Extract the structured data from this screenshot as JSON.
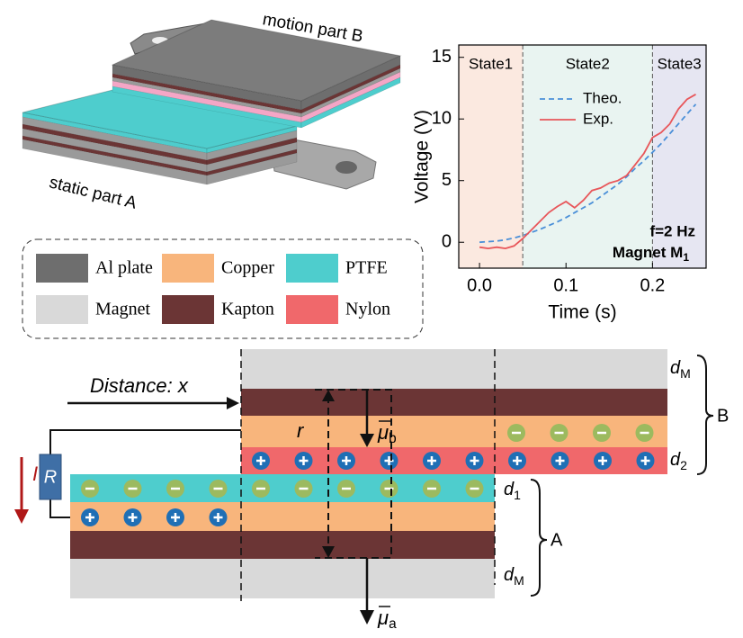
{
  "chart_data": {
    "type": "line",
    "x_label": "Time (s)",
    "y_label": "Voltage (V)",
    "x": [
      0,
      0.01,
      0.02,
      0.03,
      0.04,
      0.05,
      0.06,
      0.07,
      0.08,
      0.09,
      0.1,
      0.11,
      0.12,
      0.13,
      0.14,
      0.15,
      0.16,
      0.17,
      0.18,
      0.19,
      0.2,
      0.21,
      0.22,
      0.23,
      0.24,
      0.25
    ],
    "series": [
      {
        "name": "Theo.",
        "color": "#4a8fd8",
        "dashed": true,
        "values": [
          0,
          0.05,
          0.1,
          0.2,
          0.35,
          0.55,
          0.8,
          1.05,
          1.35,
          1.65,
          2.0,
          2.4,
          2.8,
          3.2,
          3.7,
          4.2,
          4.7,
          5.3,
          6.0,
          6.6,
          7.3,
          8.0,
          8.8,
          9.6,
          10.4,
          11.2
        ]
      },
      {
        "name": "Exp.",
        "color": "#e8565a",
        "dashed": false,
        "values": [
          -0.4,
          -0.5,
          -0.4,
          -0.5,
          -0.3,
          0.3,
          1.0,
          1.7,
          2.4,
          2.9,
          3.3,
          2.8,
          3.4,
          4.2,
          4.4,
          4.8,
          5.0,
          5.4,
          6.3,
          7.2,
          8.5,
          8.9,
          9.6,
          10.8,
          11.6,
          12.0
        ]
      }
    ],
    "regions": [
      {
        "name": "State1",
        "x0": -0.024,
        "x1": 0.05,
        "color": "#fbe9e0"
      },
      {
        "name": "State2",
        "x0": 0.05,
        "x1": 0.2,
        "color": "#e9f4f1"
      },
      {
        "name": "State3",
        "x0": 0.2,
        "x1": 0.262,
        "color": "#e6e6f2"
      }
    ],
    "xlim": [
      -0.024,
      0.262
    ],
    "ylim": [
      -2.1,
      16
    ],
    "xticks": [
      {
        "value": 0,
        "label": "0.0"
      },
      0.1,
      0.2
    ],
    "yticks": [
      0,
      5,
      10,
      15
    ],
    "annotation": {
      "line1": "f=2 Hz",
      "line2": "Magnet M",
      "line2_sub": "1"
    }
  },
  "illustration": {
    "motion_label": "motion part B",
    "static_label": "static part A"
  },
  "materials": [
    {
      "name": "Al plate",
      "color": "#6e6e6e"
    },
    {
      "name": "Copper",
      "color": "#f8b57c"
    },
    {
      "name": "PTFE",
      "color": "#4ecdcd"
    },
    {
      "name": "Magnet",
      "color": "#d9d9d9"
    },
    {
      "name": "Kapton",
      "color": "#6b3535"
    },
    {
      "name": "Nylon",
      "color": "#f0686b"
    }
  ],
  "schematic": {
    "distance_label": "Distance: x",
    "r_label": "r",
    "mu_b": {
      "symbol": "μ",
      "sub": "b"
    },
    "mu_a": {
      "symbol": "μ",
      "sub": "a"
    },
    "resistor": "R",
    "current": "I",
    "d_top": {
      "symbol": "d",
      "sub": "M"
    },
    "d_2": {
      "symbol": "d",
      "sub": "2"
    },
    "d_1": {
      "symbol": "d",
      "sub": "1"
    },
    "d_bottom": {
      "symbol": "d",
      "sub": "M"
    },
    "part_b": "B",
    "part_a": "A"
  }
}
